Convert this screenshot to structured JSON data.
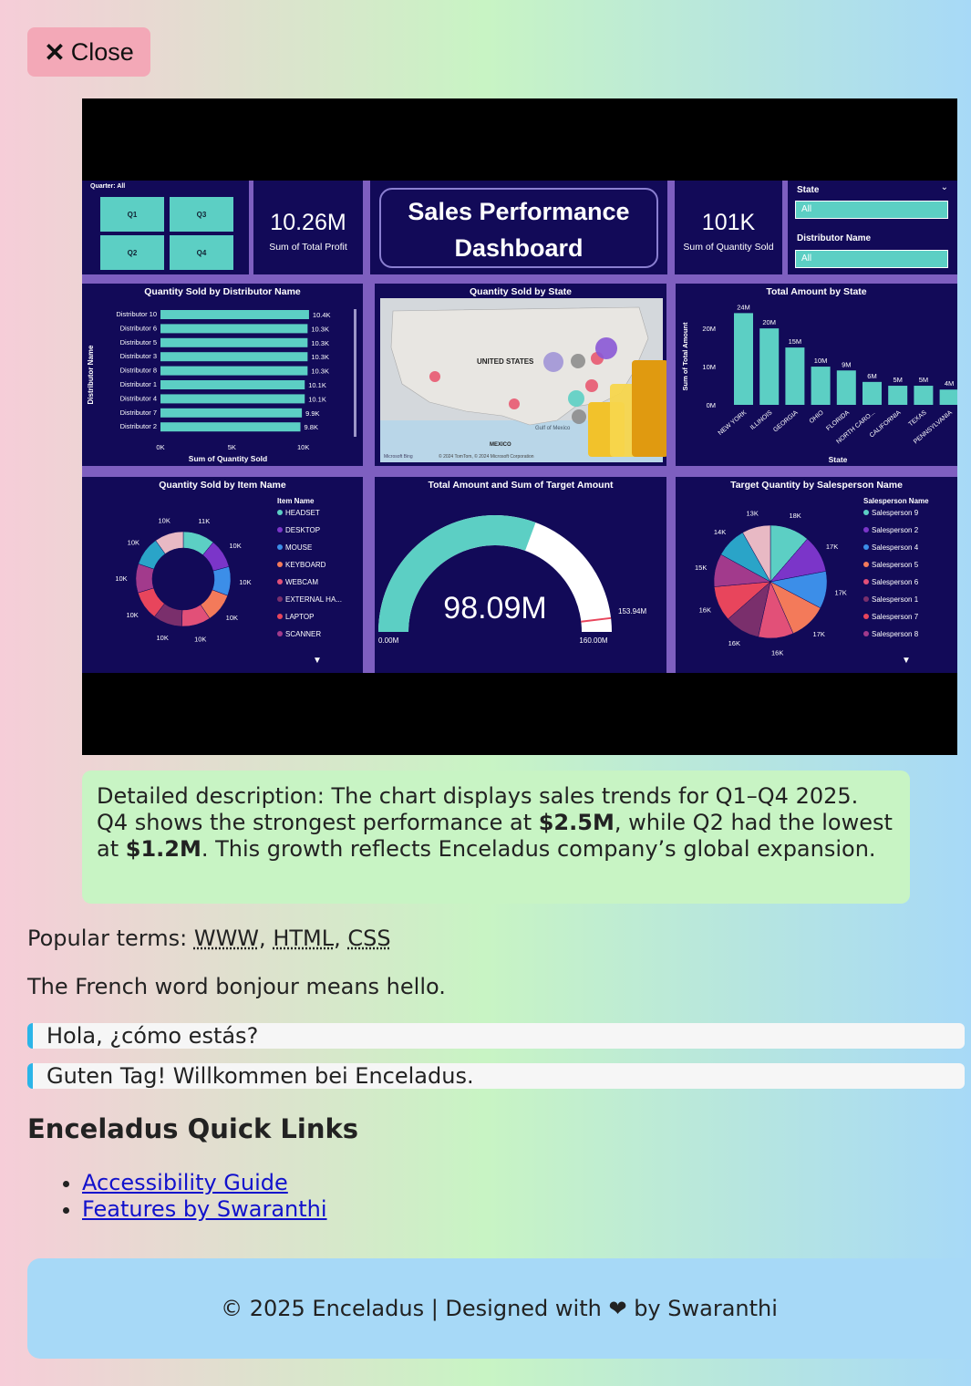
{
  "close": {
    "icon": "x-icon",
    "label": "Close"
  },
  "dashboard": {
    "title_line1": "Sales Performance",
    "title_line2": "Dashboard",
    "quarter_slicer": {
      "label": "Quarter: All",
      "items": [
        "Q1",
        "Q3",
        "Q2",
        "Q4"
      ]
    },
    "kpis": [
      {
        "value": "10.26M",
        "label": "Sum of Total Profit"
      },
      {
        "value": "101K",
        "label": "Sum of Quantity Sold"
      }
    ],
    "slicers": [
      {
        "label": "State",
        "value": "All"
      },
      {
        "label": "Distributor Name",
        "value": "All"
      }
    ],
    "charts": {
      "distributor": {
        "title": "Quantity Sold by Distributor Name",
        "ylabel": "Distributor Name",
        "xlabel": "Sum of Quantity Sold",
        "ticks": [
          "0K",
          "5K",
          "10K"
        ],
        "categories": [
          "Distributor 10",
          "Distributor 6",
          "Distributor 5",
          "Distributor 3",
          "Distributor 8",
          "Distributor 1",
          "Distributor 4",
          "Distributor 7",
          "Distributor 2"
        ],
        "values": [
          10.4,
          10.3,
          10.3,
          10.3,
          10.3,
          10.1,
          10.1,
          9.9,
          9.8
        ],
        "labels": [
          "10.4K",
          "10.3K",
          "10.3K",
          "10.3K",
          "10.3K",
          "10.1K",
          "10.1K",
          "9.9K",
          "9.8K"
        ],
        "xlim": [
          0,
          12
        ]
      },
      "map": {
        "title": "Quantity Sold by State",
        "country_label": "UNITED STATES",
        "gulf_label": "Gulf of Mexico",
        "mexico_label": "MEXICO",
        "attribution": "© 2024 TomTom, © 2024 Microsoft Corporation",
        "bing_label": "Microsoft Bing"
      },
      "amount_by_state": {
        "title": "Total Amount by State",
        "xlabel": "State",
        "ylabel": "Sum of Total Amount",
        "ticks": [
          "0M",
          "10M",
          "20M"
        ],
        "categories": [
          "NEW YORK",
          "ILLINOIS",
          "GEORGIA",
          "OHIO",
          "FLORIDA",
          "NORTH CARO...",
          "CALIFORNIA",
          "TEXAS",
          "PENNSYLVANIA"
        ],
        "values": [
          24,
          20,
          15,
          10,
          9,
          6,
          5,
          5,
          4
        ],
        "labels": [
          "24M",
          "20M",
          "15M",
          "10M",
          "9M",
          "6M",
          "5M",
          "5M",
          "4M"
        ],
        "ylim": [
          0,
          26
        ]
      },
      "item_donut": {
        "title": "Quantity Sold by Item Name",
        "legend_title": "Item Name",
        "items": [
          "HEADSET",
          "DESKTOP",
          "MOUSE",
          "KEYBOARD",
          "WEBCAM",
          "EXTERNAL HA...",
          "LAPTOP",
          "SCANNER"
        ],
        "colors": [
          "#5ccfc4",
          "#7b35c9",
          "#3c8ee8",
          "#f37a5a",
          "#e25078",
          "#7a2f6c",
          "#e8455c",
          "#a23a8c",
          "#2aa4c8",
          "#e8b9c4"
        ],
        "values": [
          11,
          10,
          10,
          10,
          10,
          10,
          10,
          10,
          10,
          10
        ],
        "labels": [
          "11K",
          "10K",
          "10K",
          "10K",
          "10K",
          "10K",
          "10K",
          "10K",
          "10K",
          "10K"
        ]
      },
      "gauge": {
        "title": "Total Amount and Sum of Target Amount",
        "value_label": "98.09M",
        "min_label": "0.00M",
        "max_label": "160.00M",
        "target_label": "153.94M",
        "value": 98.09,
        "max": 160,
        "target": 153.94
      },
      "salesperson_pie": {
        "title": "Target Quantity by Salesperson Name",
        "legend_title": "Salesperson Name",
        "items": [
          "Salesperson 9",
          "Salesperson 2",
          "Salesperson 4",
          "Salesperson 5",
          "Salesperson 6",
          "Salesperson 1",
          "Salesperson 7",
          "Salesperson 8"
        ],
        "colors": [
          "#5ccfc4",
          "#7b35c9",
          "#3c8ee8",
          "#f37a5a",
          "#e25078",
          "#7a2f6c",
          "#e8455c",
          "#a23a8c",
          "#2aa4c8",
          "#e8b9c4"
        ],
        "values": [
          18,
          17,
          17,
          17,
          16,
          16,
          16,
          15,
          14,
          13
        ],
        "labels": [
          "18K",
          "17K",
          "17K",
          "17K",
          "16K",
          "16K",
          "16K",
          "15K",
          "14K",
          "13K"
        ]
      }
    }
  },
  "description": {
    "prefix": "Detailed description: The chart displays sales trends for Q1–Q4 2025. Q4 shows the strongest performance at ",
    "bold1": "$2.5M",
    "middle": ", while Q2 had the lowest at ",
    "bold2": "$1.2M",
    "suffix": ". This growth reflects Enceladus company’s global expansion."
  },
  "popular_terms": {
    "label": "Popular terms: ",
    "terms": [
      "WWW",
      "HTML",
      "CSS"
    ]
  },
  "french_line": "The French word bonjour means hello.",
  "quotes": [
    "Hola, ¿cómo estás?",
    "Guten Tag! Willkommen bei Enceladus."
  ],
  "quick_links": {
    "title": "Enceladus Quick Links",
    "items": [
      "Accessibility Guide",
      "Features by Swaranthi"
    ]
  },
  "footer": {
    "text": "© 2025 Enceladus | Designed with ❤ by Swaranthi"
  }
}
